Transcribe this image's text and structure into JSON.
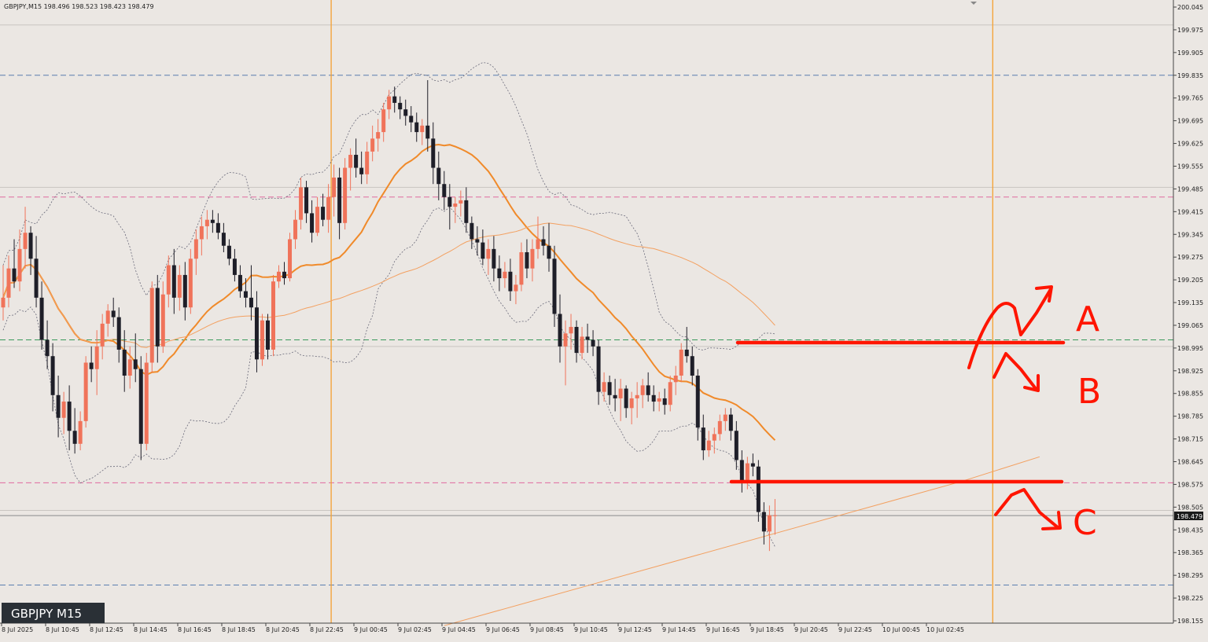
{
  "header": {
    "symbol_info": "GBPJPY,M15  198.496 198.523 198.423 198.479"
  },
  "badge": {
    "label": "GBPJPY M15"
  },
  "current_price": "198.479",
  "colors": {
    "background": "#ebe7e3",
    "bull": "#f0735a",
    "bear": "#1e1e28",
    "ma_fast": "#f08a2a",
    "ma_slow": "#f3a060",
    "bands": "#6a6a7a",
    "session_line": "#f5a030",
    "annotation": "#ff1500"
  },
  "chart_data": {
    "type": "candlestick",
    "y_range": [
      198.155,
      200.045
    ],
    "y_ticks": [
      "200.045",
      "199.975",
      "199.905",
      "199.835",
      "199.765",
      "199.695",
      "199.625",
      "199.555",
      "199.485",
      "199.415",
      "199.345",
      "199.275",
      "199.205",
      "199.135",
      "199.065",
      "198.995",
      "198.925",
      "198.855",
      "198.785",
      "198.715",
      "198.645",
      "198.575",
      "198.505",
      "198.435",
      "198.365",
      "198.295",
      "198.225",
      "198.155"
    ],
    "x_ticks": [
      "8 Jul 2025",
      "8 Jul 10:45",
      "8 Jul 12:45",
      "8 Jul 14:45",
      "8 Jul 16:45",
      "8 Jul 18:45",
      "8 Jul 20:45",
      "8 Jul 22:45",
      "9 Jul 00:45",
      "9 Jul 02:45",
      "9 Jul 04:45",
      "9 Jul 06:45",
      "9 Jul 08:45",
      "9 Jul 10:45",
      "9 Jul 12:45",
      "9 Jul 14:45",
      "9 Jul 16:45",
      "9 Jul 18:45",
      "9 Jul 20:45",
      "9 Jul 22:45",
      "10 Jul 00:45",
      "10 Jul 02:45"
    ],
    "horizontal_levels": [
      {
        "price": 199.99,
        "style": "solid",
        "color": "#c9c5c1"
      },
      {
        "price": 199.835,
        "style": "dashed",
        "color": "#5a7fb0"
      },
      {
        "price": 199.49,
        "style": "solid",
        "color": "#c9c5c1"
      },
      {
        "price": 199.46,
        "style": "dashed",
        "color": "#e06aa0"
      },
      {
        "price": 199.02,
        "style": "dashed",
        "color": "#3a9a5a"
      },
      {
        "price": 199.0,
        "style": "solid",
        "color": "#c9c5c1"
      },
      {
        "price": 198.58,
        "style": "dashed",
        "color": "#e06aa0"
      },
      {
        "price": 198.495,
        "style": "solid",
        "color": "#c9c5c1"
      },
      {
        "price": 198.479,
        "style": "solid",
        "color": "#8a8a8a"
      },
      {
        "price": 198.265,
        "style": "dashed",
        "color": "#5a7fb0"
      }
    ],
    "session_lines_after_candle": [
      59,
      179
    ],
    "candles": [
      {
        "o": 199.12,
        "h": 199.25,
        "l": 199.08,
        "c": 199.15
      },
      {
        "o": 199.15,
        "h": 199.28,
        "l": 199.12,
        "c": 199.24
      },
      {
        "o": 199.24,
        "h": 199.33,
        "l": 199.18,
        "c": 199.2
      },
      {
        "o": 199.2,
        "h": 199.36,
        "l": 199.17,
        "c": 199.3
      },
      {
        "o": 199.3,
        "h": 199.43,
        "l": 199.24,
        "c": 199.35
      },
      {
        "o": 199.35,
        "h": 199.37,
        "l": 199.22,
        "c": 199.27
      },
      {
        "o": 199.27,
        "h": 199.34,
        "l": 199.12,
        "c": 199.15
      },
      {
        "o": 199.15,
        "h": 199.2,
        "l": 198.99,
        "c": 199.02
      },
      {
        "o": 199.02,
        "h": 199.08,
        "l": 198.93,
        "c": 198.97
      },
      {
        "o": 198.97,
        "h": 199.01,
        "l": 198.8,
        "c": 198.85
      },
      {
        "o": 198.85,
        "h": 198.91,
        "l": 198.72,
        "c": 198.78
      },
      {
        "o": 198.78,
        "h": 198.86,
        "l": 198.73,
        "c": 198.83
      },
      {
        "o": 198.83,
        "h": 198.88,
        "l": 198.68,
        "c": 198.74
      },
      {
        "o": 198.74,
        "h": 198.81,
        "l": 198.67,
        "c": 198.7
      },
      {
        "o": 198.7,
        "h": 198.8,
        "l": 198.68,
        "c": 198.77
      },
      {
        "o": 198.77,
        "h": 198.97,
        "l": 198.75,
        "c": 198.95
      },
      {
        "o": 198.95,
        "h": 199.0,
        "l": 198.89,
        "c": 198.93
      },
      {
        "o": 198.93,
        "h": 199.05,
        "l": 198.85,
        "c": 199.0
      },
      {
        "o": 199.0,
        "h": 199.1,
        "l": 198.96,
        "c": 199.07
      },
      {
        "o": 199.07,
        "h": 199.13,
        "l": 199.03,
        "c": 199.11
      },
      {
        "o": 199.11,
        "h": 199.15,
        "l": 199.06,
        "c": 199.09
      },
      {
        "o": 199.09,
        "h": 199.12,
        "l": 198.95,
        "c": 198.99
      },
      {
        "o": 198.99,
        "h": 199.05,
        "l": 198.86,
        "c": 198.91
      },
      {
        "o": 198.91,
        "h": 199.0,
        "l": 198.87,
        "c": 198.96
      },
      {
        "o": 198.96,
        "h": 199.04,
        "l": 198.89,
        "c": 198.93
      },
      {
        "o": 198.93,
        "h": 198.97,
        "l": 198.65,
        "c": 198.7
      },
      {
        "o": 198.7,
        "h": 198.98,
        "l": 198.68,
        "c": 198.95
      },
      {
        "o": 198.95,
        "h": 199.2,
        "l": 198.92,
        "c": 199.18
      },
      {
        "o": 199.18,
        "h": 199.22,
        "l": 198.95,
        "c": 199.0
      },
      {
        "o": 199.0,
        "h": 199.2,
        "l": 198.98,
        "c": 199.16
      },
      {
        "o": 199.16,
        "h": 199.28,
        "l": 199.12,
        "c": 199.25
      },
      {
        "o": 199.25,
        "h": 199.3,
        "l": 199.1,
        "c": 199.15
      },
      {
        "o": 199.15,
        "h": 199.25,
        "l": 199.11,
        "c": 199.22
      },
      {
        "o": 199.22,
        "h": 199.26,
        "l": 199.08,
        "c": 199.12
      },
      {
        "o": 199.12,
        "h": 199.3,
        "l": 199.1,
        "c": 199.27
      },
      {
        "o": 199.27,
        "h": 199.36,
        "l": 199.22,
        "c": 199.33
      },
      {
        "o": 199.33,
        "h": 199.4,
        "l": 199.28,
        "c": 199.37
      },
      {
        "o": 199.37,
        "h": 199.42,
        "l": 199.33,
        "c": 199.39
      },
      {
        "o": 199.39,
        "h": 199.42,
        "l": 199.35,
        "c": 199.38
      },
      {
        "o": 199.38,
        "h": 199.41,
        "l": 199.33,
        "c": 199.35
      },
      {
        "o": 199.35,
        "h": 199.38,
        "l": 199.29,
        "c": 199.31
      },
      {
        "o": 199.31,
        "h": 199.33,
        "l": 199.25,
        "c": 199.27
      },
      {
        "o": 199.27,
        "h": 199.3,
        "l": 199.2,
        "c": 199.22
      },
      {
        "o": 199.22,
        "h": 199.25,
        "l": 199.15,
        "c": 199.17
      },
      {
        "o": 199.17,
        "h": 199.21,
        "l": 199.12,
        "c": 199.15
      },
      {
        "o": 199.15,
        "h": 199.25,
        "l": 199.08,
        "c": 199.12
      },
      {
        "o": 199.12,
        "h": 199.17,
        "l": 198.92,
        "c": 198.96
      },
      {
        "o": 198.96,
        "h": 199.1,
        "l": 198.94,
        "c": 199.08
      },
      {
        "o": 199.08,
        "h": 199.1,
        "l": 198.96,
        "c": 198.99
      },
      {
        "o": 198.99,
        "h": 199.22,
        "l": 198.97,
        "c": 199.2
      },
      {
        "o": 199.2,
        "h": 199.25,
        "l": 199.18,
        "c": 199.23
      },
      {
        "o": 199.23,
        "h": 199.26,
        "l": 199.19,
        "c": 199.21
      },
      {
        "o": 199.21,
        "h": 199.35,
        "l": 199.2,
        "c": 199.33
      },
      {
        "o": 199.33,
        "h": 199.42,
        "l": 199.3,
        "c": 199.39
      },
      {
        "o": 199.39,
        "h": 199.52,
        "l": 199.36,
        "c": 199.49
      },
      {
        "o": 199.49,
        "h": 199.51,
        "l": 199.38,
        "c": 199.41
      },
      {
        "o": 199.41,
        "h": 199.45,
        "l": 199.32,
        "c": 199.35
      },
      {
        "o": 199.35,
        "h": 199.46,
        "l": 199.34,
        "c": 199.43
      },
      {
        "o": 199.43,
        "h": 199.47,
        "l": 199.37,
        "c": 199.39
      },
      {
        "o": 199.39,
        "h": 199.5,
        "l": 199.35,
        "c": 199.46
      },
      {
        "o": 199.46,
        "h": 199.56,
        "l": 199.4,
        "c": 199.52
      },
      {
        "o": 199.52,
        "h": 199.55,
        "l": 199.33,
        "c": 199.38
      },
      {
        "o": 199.38,
        "h": 199.58,
        "l": 199.36,
        "c": 199.55
      },
      {
        "o": 199.55,
        "h": 199.61,
        "l": 199.48,
        "c": 199.59
      },
      {
        "o": 199.59,
        "h": 199.64,
        "l": 199.52,
        "c": 199.55
      },
      {
        "o": 199.55,
        "h": 199.6,
        "l": 199.5,
        "c": 199.53
      },
      {
        "o": 199.53,
        "h": 199.63,
        "l": 199.5,
        "c": 199.6
      },
      {
        "o": 199.6,
        "h": 199.68,
        "l": 199.57,
        "c": 199.64
      },
      {
        "o": 199.64,
        "h": 199.7,
        "l": 199.6,
        "c": 199.66
      },
      {
        "o": 199.66,
        "h": 199.75,
        "l": 199.63,
        "c": 199.73
      },
      {
        "o": 199.73,
        "h": 199.79,
        "l": 199.7,
        "c": 199.77
      },
      {
        "o": 199.77,
        "h": 199.8,
        "l": 199.72,
        "c": 199.75
      },
      {
        "o": 199.75,
        "h": 199.77,
        "l": 199.7,
        "c": 199.73
      },
      {
        "o": 199.73,
        "h": 199.76,
        "l": 199.68,
        "c": 199.71
      },
      {
        "o": 199.71,
        "h": 199.74,
        "l": 199.66,
        "c": 199.69
      },
      {
        "o": 199.69,
        "h": 199.72,
        "l": 199.63,
        "c": 199.66
      },
      {
        "o": 199.66,
        "h": 199.7,
        "l": 199.62,
        "c": 199.68
      },
      {
        "o": 199.68,
        "h": 199.82,
        "l": 199.6,
        "c": 199.64
      },
      {
        "o": 199.64,
        "h": 199.69,
        "l": 199.5,
        "c": 199.55
      },
      {
        "o": 199.55,
        "h": 199.6,
        "l": 199.45,
        "c": 199.5
      },
      {
        "o": 199.5,
        "h": 199.54,
        "l": 199.42,
        "c": 199.46
      },
      {
        "o": 199.46,
        "h": 199.5,
        "l": 199.36,
        "c": 199.43
      },
      {
        "o": 199.43,
        "h": 199.46,
        "l": 199.38,
        "c": 199.44
      },
      {
        "o": 199.44,
        "h": 199.48,
        "l": 199.4,
        "c": 199.45
      },
      {
        "o": 199.45,
        "h": 199.49,
        "l": 199.35,
        "c": 199.38
      },
      {
        "o": 199.38,
        "h": 199.4,
        "l": 199.3,
        "c": 199.33
      },
      {
        "o": 199.33,
        "h": 199.37,
        "l": 199.28,
        "c": 199.32
      },
      {
        "o": 199.32,
        "h": 199.36,
        "l": 199.25,
        "c": 199.27
      },
      {
        "o": 199.27,
        "h": 199.33,
        "l": 199.22,
        "c": 199.3
      },
      {
        "o": 199.3,
        "h": 199.34,
        "l": 199.2,
        "c": 199.24
      },
      {
        "o": 199.24,
        "h": 199.28,
        "l": 199.17,
        "c": 199.21
      },
      {
        "o": 199.21,
        "h": 199.26,
        "l": 199.18,
        "c": 199.23
      },
      {
        "o": 199.23,
        "h": 199.27,
        "l": 199.14,
        "c": 199.17
      },
      {
        "o": 199.17,
        "h": 199.22,
        "l": 199.13,
        "c": 199.19
      },
      {
        "o": 199.19,
        "h": 199.32,
        "l": 199.17,
        "c": 199.29
      },
      {
        "o": 199.29,
        "h": 199.33,
        "l": 199.21,
        "c": 199.24
      },
      {
        "o": 199.24,
        "h": 199.33,
        "l": 199.2,
        "c": 199.3
      },
      {
        "o": 199.3,
        "h": 199.4,
        "l": 199.27,
        "c": 199.33
      },
      {
        "o": 199.33,
        "h": 199.37,
        "l": 199.28,
        "c": 199.31
      },
      {
        "o": 199.31,
        "h": 199.38,
        "l": 199.23,
        "c": 199.27
      },
      {
        "o": 199.27,
        "h": 199.31,
        "l": 199.06,
        "c": 199.1
      },
      {
        "o": 199.1,
        "h": 199.16,
        "l": 198.95,
        "c": 199.0
      },
      {
        "o": 199.0,
        "h": 199.08,
        "l": 198.88,
        "c": 199.04
      },
      {
        "o": 199.04,
        "h": 199.1,
        "l": 198.99,
        "c": 199.06
      },
      {
        "o": 199.06,
        "h": 199.08,
        "l": 198.95,
        "c": 198.98
      },
      {
        "o": 198.98,
        "h": 199.06,
        "l": 198.96,
        "c": 199.03
      },
      {
        "o": 199.03,
        "h": 199.07,
        "l": 198.98,
        "c": 199.02
      },
      {
        "o": 199.02,
        "h": 199.05,
        "l": 198.97,
        "c": 199.0
      },
      {
        "o": 199.0,
        "h": 199.02,
        "l": 198.82,
        "c": 198.86
      },
      {
        "o": 198.86,
        "h": 198.92,
        "l": 198.83,
        "c": 198.89
      },
      {
        "o": 198.89,
        "h": 198.91,
        "l": 198.82,
        "c": 198.85
      },
      {
        "o": 198.85,
        "h": 198.9,
        "l": 198.8,
        "c": 198.84
      },
      {
        "o": 198.84,
        "h": 198.9,
        "l": 198.77,
        "c": 198.87
      },
      {
        "o": 198.87,
        "h": 198.88,
        "l": 198.78,
        "c": 198.81
      },
      {
        "o": 198.81,
        "h": 198.86,
        "l": 198.76,
        "c": 198.84
      },
      {
        "o": 198.84,
        "h": 198.89,
        "l": 198.78,
        "c": 198.85
      },
      {
        "o": 198.85,
        "h": 198.9,
        "l": 198.81,
        "c": 198.88
      },
      {
        "o": 198.88,
        "h": 198.92,
        "l": 198.83,
        "c": 198.85
      },
      {
        "o": 198.85,
        "h": 198.88,
        "l": 198.8,
        "c": 198.83
      },
      {
        "o": 198.83,
        "h": 198.86,
        "l": 198.8,
        "c": 198.84
      },
      {
        "o": 198.84,
        "h": 198.87,
        "l": 198.79,
        "c": 198.82
      },
      {
        "o": 198.82,
        "h": 198.91,
        "l": 198.8,
        "c": 198.89
      },
      {
        "o": 198.89,
        "h": 198.94,
        "l": 198.85,
        "c": 198.91
      },
      {
        "o": 198.91,
        "h": 199.01,
        "l": 198.89,
        "c": 198.99
      },
      {
        "o": 198.99,
        "h": 199.06,
        "l": 198.95,
        "c": 198.97
      },
      {
        "o": 198.97,
        "h": 199.0,
        "l": 198.88,
        "c": 198.91
      },
      {
        "o": 198.91,
        "h": 198.93,
        "l": 198.71,
        "c": 198.75
      },
      {
        "o": 198.75,
        "h": 198.79,
        "l": 198.65,
        "c": 198.68
      },
      {
        "o": 198.68,
        "h": 198.74,
        "l": 198.66,
        "c": 198.71
      },
      {
        "o": 198.71,
        "h": 198.75,
        "l": 198.67,
        "c": 198.73
      },
      {
        "o": 198.73,
        "h": 198.79,
        "l": 198.71,
        "c": 198.77
      },
      {
        "o": 198.77,
        "h": 198.81,
        "l": 198.74,
        "c": 198.79
      },
      {
        "o": 198.79,
        "h": 198.81,
        "l": 198.71,
        "c": 198.74
      },
      {
        "o": 198.74,
        "h": 198.77,
        "l": 198.62,
        "c": 198.65
      },
      {
        "o": 198.65,
        "h": 198.68,
        "l": 198.55,
        "c": 198.58
      },
      {
        "o": 198.58,
        "h": 198.66,
        "l": 198.56,
        "c": 198.64
      },
      {
        "o": 198.64,
        "h": 198.67,
        "l": 198.6,
        "c": 198.63
      },
      {
        "o": 198.63,
        "h": 198.65,
        "l": 198.46,
        "c": 198.49
      },
      {
        "o": 198.49,
        "h": 198.52,
        "l": 198.39,
        "c": 198.43
      },
      {
        "o": 198.43,
        "h": 198.51,
        "l": 198.37,
        "c": 198.48
      },
      {
        "o": 198.48,
        "h": 198.53,
        "l": 198.42,
        "c": 198.48
      }
    ]
  },
  "annotations": {
    "labels": [
      "A",
      "B",
      "C"
    ]
  }
}
